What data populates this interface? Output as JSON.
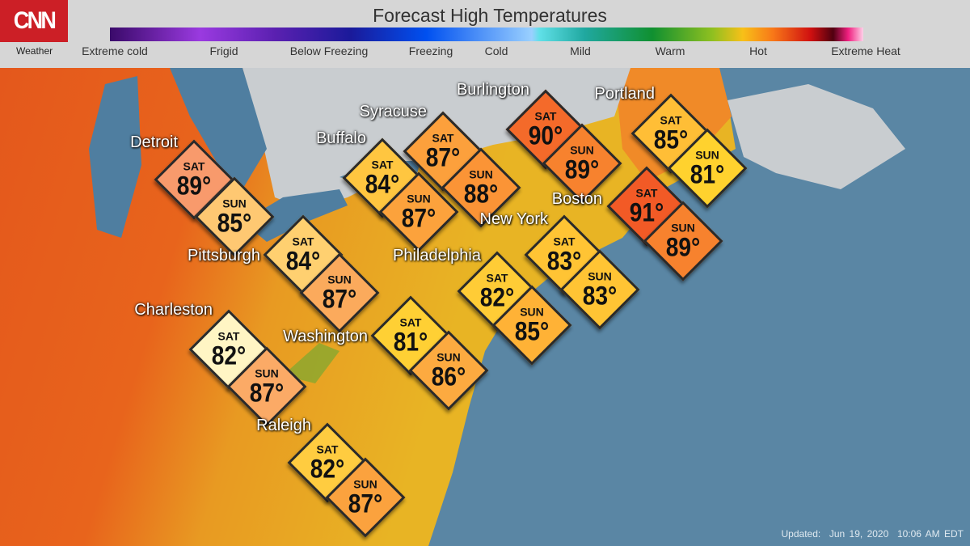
{
  "header": {
    "logo_text": "CNN",
    "subbrand": "Weather",
    "title": "Forecast High Temperatures",
    "legend": [
      "Extreme cold",
      "Frigid",
      "Below Freezing",
      "Freezing",
      "Cold",
      "Mild",
      "Warm",
      "Hot",
      "Extreme Heat"
    ]
  },
  "footer": {
    "updated_label": "Updated:",
    "date": "Jun 19, 2020",
    "time": "10:06 AM EDT"
  },
  "day_labels": {
    "sat": "SAT",
    "sun": "SUN"
  },
  "colors": {
    "ocean": "#5a86a4",
    "land_west": "#e4581c",
    "land_east": "#e8a820",
    "canada": "#c9cdd0",
    "box_border": "#2a2a2a",
    "cnn_red": "#cc1f26"
  },
  "cities": [
    {
      "name": "Detroit",
      "sat": "89°",
      "sun": "85°",
      "sat_color": "#f89a6c",
      "sun_color": "#fec872"
    },
    {
      "name": "Pittsburgh",
      "sat": "84°",
      "sun": "87°",
      "sat_color": "#ffd070",
      "sun_color": "#fbaa5c"
    },
    {
      "name": "Charleston",
      "sat": "82°",
      "sun": "87°",
      "sat_color": "#fff5c4",
      "sun_color": "#fbaa66"
    },
    {
      "name": "Buffalo",
      "sat": "84°",
      "sun": "87°",
      "sat_color": "#ffc640",
      "sun_color": "#fca23c"
    },
    {
      "name": "Syracuse",
      "sat": "87°",
      "sun": "88°",
      "sat_color": "#fca03c",
      "sun_color": "#fb9436"
    },
    {
      "name": "Burlington",
      "sat": "90°",
      "sun": "89°",
      "sat_color": "#f46a2a",
      "sun_color": "#f7822e"
    },
    {
      "name": "Portland",
      "sat": "85°",
      "sun": "81°",
      "sat_color": "#ffbe36",
      "sun_color": "#ffd22e"
    },
    {
      "name": "Boston",
      "sat": "91°",
      "sun": "89°",
      "sat_color": "#f25a26",
      "sun_color": "#f7822e"
    },
    {
      "name": "New York",
      "sat": "83°",
      "sun": "83°",
      "sat_color": "#ffc434",
      "sun_color": "#ffc434"
    },
    {
      "name": "Philadelphia",
      "sat": "82°",
      "sun": "85°",
      "sat_color": "#ffcc36",
      "sun_color": "#ffb236"
    },
    {
      "name": "Washington",
      "sat": "81°",
      "sun": "86°",
      "sat_color": "#ffd034",
      "sun_color": "#fcaa40"
    },
    {
      "name": "Raleigh",
      "sat": "82°",
      "sun": "87°",
      "sat_color": "#ffcc40",
      "sun_color": "#fba23e"
    }
  ]
}
